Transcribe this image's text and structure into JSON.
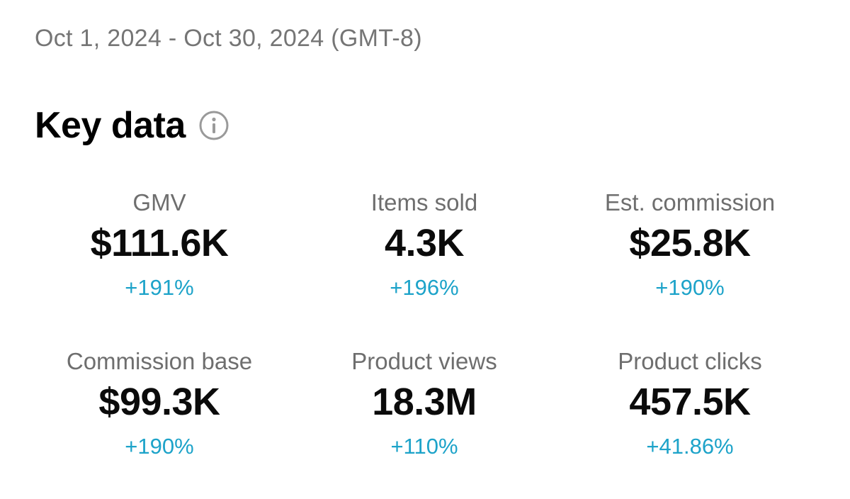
{
  "date_range": "Oct 1, 2024 - Oct 30, 2024 (GMT-8)",
  "section": {
    "title": "Key data",
    "info_icon": "info-circle-icon"
  },
  "colors": {
    "positive_change": "#1da3c9",
    "label": "#6e6e6e",
    "value": "#0b0b0b"
  },
  "metrics": [
    {
      "label": "GMV",
      "value": "$111.6K",
      "change": "+191%"
    },
    {
      "label": "Items sold",
      "value": "4.3K",
      "change": "+196%"
    },
    {
      "label": "Est. commission",
      "value": "$25.8K",
      "change": "+190%"
    },
    {
      "label": "Commission base",
      "value": "$99.3K",
      "change": "+190%"
    },
    {
      "label": "Product views",
      "value": "18.3M",
      "change": "+110%"
    },
    {
      "label": "Product clicks",
      "value": "457.5K",
      "change": "+41.86%"
    }
  ]
}
